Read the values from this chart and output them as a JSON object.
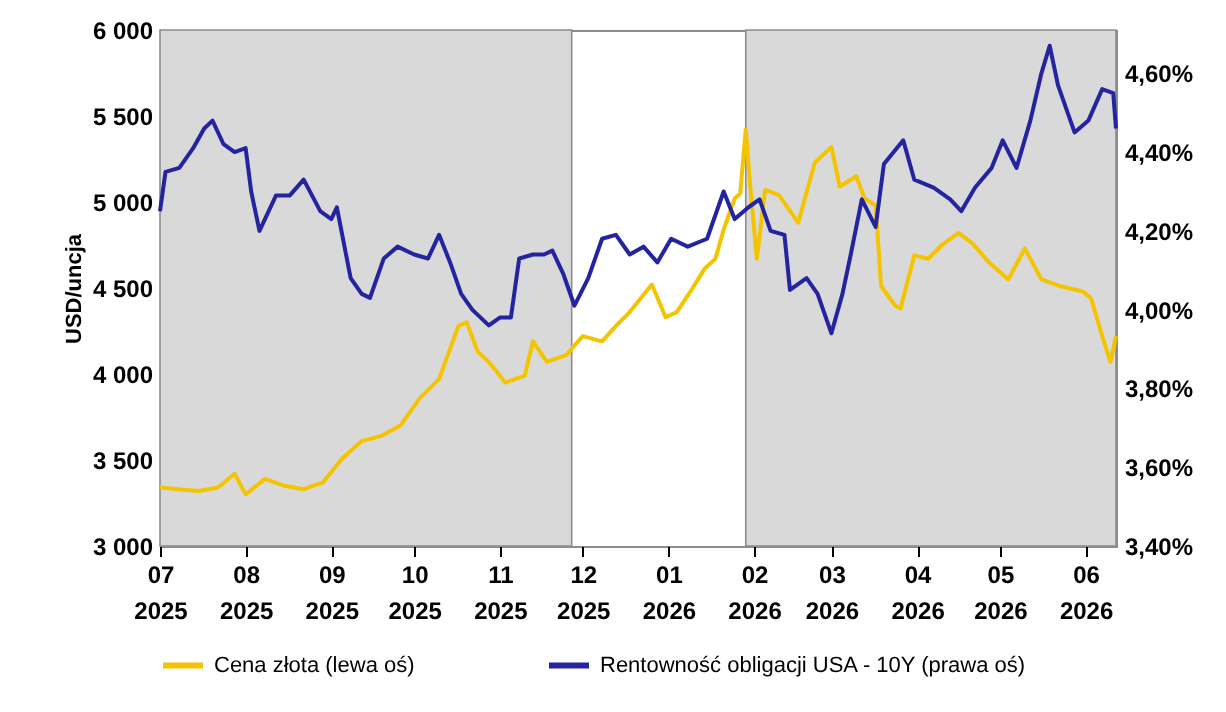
{
  "chart_data": {
    "type": "line",
    "ylabel": "USD/uncja",
    "xlim": [
      "2025-07-01",
      "2026-06-12"
    ],
    "xticks": [
      {
        "value": "2025-07-01",
        "label": "07\n2025"
      },
      {
        "value": "2025-08-01",
        "label": "08\n2025"
      },
      {
        "value": "2025-09-01",
        "label": "09\n2025"
      },
      {
        "value": "2025-10-01",
        "label": "10\n2025"
      },
      {
        "value": "2025-11-01",
        "label": "11\n2025"
      },
      {
        "value": "2025-12-01",
        "label": "12\n2025"
      },
      {
        "value": "2026-01-01",
        "label": "01\n2026"
      },
      {
        "value": "2026-02-01",
        "label": "02\n2026"
      },
      {
        "value": "2026-03-01",
        "label": "03\n2026"
      },
      {
        "value": "2026-04-01",
        "label": "04\n2026"
      },
      {
        "value": "2026-05-01",
        "label": "05\n2026"
      },
      {
        "value": "2026-06-01",
        "label": "06\n2026"
      }
    ],
    "ylim": [
      3000,
      6000
    ],
    "yticks": [
      {
        "value": 3000,
        "label": "3 000"
      },
      {
        "value": 3500,
        "label": "3 500"
      },
      {
        "value": 4000,
        "label": "4 000"
      },
      {
        "value": 4500,
        "label": "4 500"
      },
      {
        "value": 5000,
        "label": "5 000"
      },
      {
        "value": 5500,
        "label": "5 500"
      },
      {
        "value": 6000,
        "label": "6 000"
      }
    ],
    "y2lim": [
      3.4,
      4.71
    ],
    "y2ticks": [
      {
        "value": 3.4,
        "label": "3,40%"
      },
      {
        "value": 3.6,
        "label": "3,60%"
      },
      {
        "value": 3.8,
        "label": "3,80%"
      },
      {
        "value": 4.0,
        "label": "4,00%"
      },
      {
        "value": 4.2,
        "label": "4,20%"
      },
      {
        "value": 4.4,
        "label": "4,40%"
      },
      {
        "value": 4.6,
        "label": "4,60%"
      }
    ],
    "bands": [
      {
        "axis": "x",
        "from": "2025-07-01",
        "to": "2025-11-27",
        "color": "#d9d9d9"
      },
      {
        "axis": "x",
        "from": "2026-01-29",
        "to": "2026-06-12",
        "color": "#d9d9d9"
      }
    ],
    "legend": "bottom",
    "grid": false,
    "line_style": "solid",
    "marker": "none",
    "series": [
      {
        "name": "Cena złota (lewa oś)",
        "color": "#f5c400",
        "x": [
          "2025-07-01",
          "2025-07-08",
          "2025-07-15",
          "2025-07-22",
          "2025-07-28",
          "2025-08-01",
          "2025-08-08",
          "2025-08-15",
          "2025-08-22",
          "2025-08-29",
          "2025-09-05",
          "2025-09-12",
          "2025-09-19",
          "2025-09-26",
          "2025-10-03",
          "2025-10-10",
          "2025-10-17",
          "2025-10-20",
          "2025-10-24",
          "2025-10-28",
          "2025-11-03",
          "2025-11-10",
          "2025-11-13",
          "2025-11-18",
          "2025-11-25",
          "2025-12-01",
          "2025-12-08",
          "2025-12-13",
          "2025-12-18",
          "2025-12-26",
          "2025-12-31",
          "2026-01-04",
          "2026-01-09",
          "2026-01-14",
          "2026-01-18",
          "2026-01-21",
          "2026-01-25",
          "2026-01-27",
          "2026-01-29",
          "2026-01-31",
          "2026-02-02",
          "2026-02-05",
          "2026-02-10",
          "2026-02-17",
          "2026-02-23",
          "2026-03-01",
          "2026-03-04",
          "2026-03-10",
          "2026-03-13",
          "2026-03-17",
          "2026-03-19",
          "2026-03-24",
          "2026-03-26",
          "2026-03-31",
          "2026-04-05",
          "2026-04-10",
          "2026-04-16",
          "2026-04-21",
          "2026-04-27",
          "2026-05-04",
          "2026-05-10",
          "2026-05-16",
          "2026-05-23",
          "2026-05-31",
          "2026-06-03",
          "2026-06-07",
          "2026-06-10",
          "2026-06-12"
        ],
        "values": [
          3340,
          3330,
          3320,
          3340,
          3420,
          3300,
          3390,
          3350,
          3330,
          3370,
          3510,
          3610,
          3640,
          3700,
          3860,
          3970,
          4280,
          4300,
          4130,
          4070,
          3950,
          3990,
          4190,
          4070,
          4110,
          4220,
          4190,
          4280,
          4360,
          4520,
          4330,
          4360,
          4480,
          4610,
          4670,
          4840,
          5020,
          5050,
          5420,
          5020,
          4670,
          5070,
          5040,
          4880,
          5230,
          5320,
          5090,
          5150,
          5020,
          4980,
          4510,
          4400,
          4380,
          4690,
          4670,
          4750,
          4820,
          4760,
          4650,
          4550,
          4730,
          4550,
          4510,
          4480,
          4440,
          4220,
          4070,
          4220
        ]
      },
      {
        "name": "Rentowność obligacji USA - 10Y (prawa oś)",
        "color": "#2424a0",
        "axis": "y2",
        "x": [
          "2025-07-01",
          "2025-07-03",
          "2025-07-08",
          "2025-07-13",
          "2025-07-17",
          "2025-07-20",
          "2025-07-24",
          "2025-07-28",
          "2025-08-01",
          "2025-08-03",
          "2025-08-06",
          "2025-08-12",
          "2025-08-17",
          "2025-08-22",
          "2025-08-28",
          "2025-09-01",
          "2025-09-03",
          "2025-09-08",
          "2025-09-12",
          "2025-09-15",
          "2025-09-20",
          "2025-09-25",
          "2025-10-01",
          "2025-10-06",
          "2025-10-10",
          "2025-10-14",
          "2025-10-18",
          "2025-10-22",
          "2025-10-28",
          "2025-11-01",
          "2025-11-05",
          "2025-11-08",
          "2025-11-13",
          "2025-11-17",
          "2025-11-20",
          "2025-11-24",
          "2025-11-28",
          "2025-12-03",
          "2025-12-08",
          "2025-12-13",
          "2025-12-18",
          "2025-12-23",
          "2025-12-28",
          "2026-01-02",
          "2026-01-08",
          "2026-01-15",
          "2026-01-21",
          "2026-01-25",
          "2026-01-30",
          "2026-02-03",
          "2026-02-07",
          "2026-02-12",
          "2026-02-14",
          "2026-02-20",
          "2026-02-24",
          "2026-03-01",
          "2026-03-05",
          "2026-03-08",
          "2026-03-12",
          "2026-03-17",
          "2026-03-20",
          "2026-03-27",
          "2026-03-31",
          "2026-04-07",
          "2026-04-13",
          "2026-04-17",
          "2026-04-22",
          "2026-04-28",
          "2026-05-02",
          "2026-05-07",
          "2026-05-12",
          "2026-05-16",
          "2026-05-19",
          "2026-05-22",
          "2026-05-28",
          "2026-06-02",
          "2026-06-07",
          "2026-06-11",
          "2026-06-12"
        ],
        "values": [
          4.25,
          4.35,
          4.36,
          4.41,
          4.46,
          4.48,
          4.42,
          4.4,
          4.41,
          4.3,
          4.2,
          4.29,
          4.29,
          4.33,
          4.25,
          4.23,
          4.26,
          4.08,
          4.04,
          4.03,
          4.13,
          4.16,
          4.14,
          4.13,
          4.19,
          4.12,
          4.04,
          4.0,
          3.96,
          3.98,
          3.98,
          4.13,
          4.14,
          4.14,
          4.15,
          4.09,
          4.01,
          4.08,
          4.18,
          4.19,
          4.14,
          4.16,
          4.12,
          4.18,
          4.16,
          4.18,
          4.3,
          4.23,
          4.26,
          4.28,
          4.2,
          4.19,
          4.05,
          4.08,
          4.04,
          3.94,
          4.04,
          4.14,
          4.28,
          4.21,
          4.37,
          4.43,
          4.33,
          4.31,
          4.28,
          4.25,
          4.31,
          4.36,
          4.43,
          4.36,
          4.48,
          4.6,
          4.67,
          4.57,
          4.45,
          4.48,
          4.56,
          4.55,
          4.46
        ]
      }
    ]
  }
}
